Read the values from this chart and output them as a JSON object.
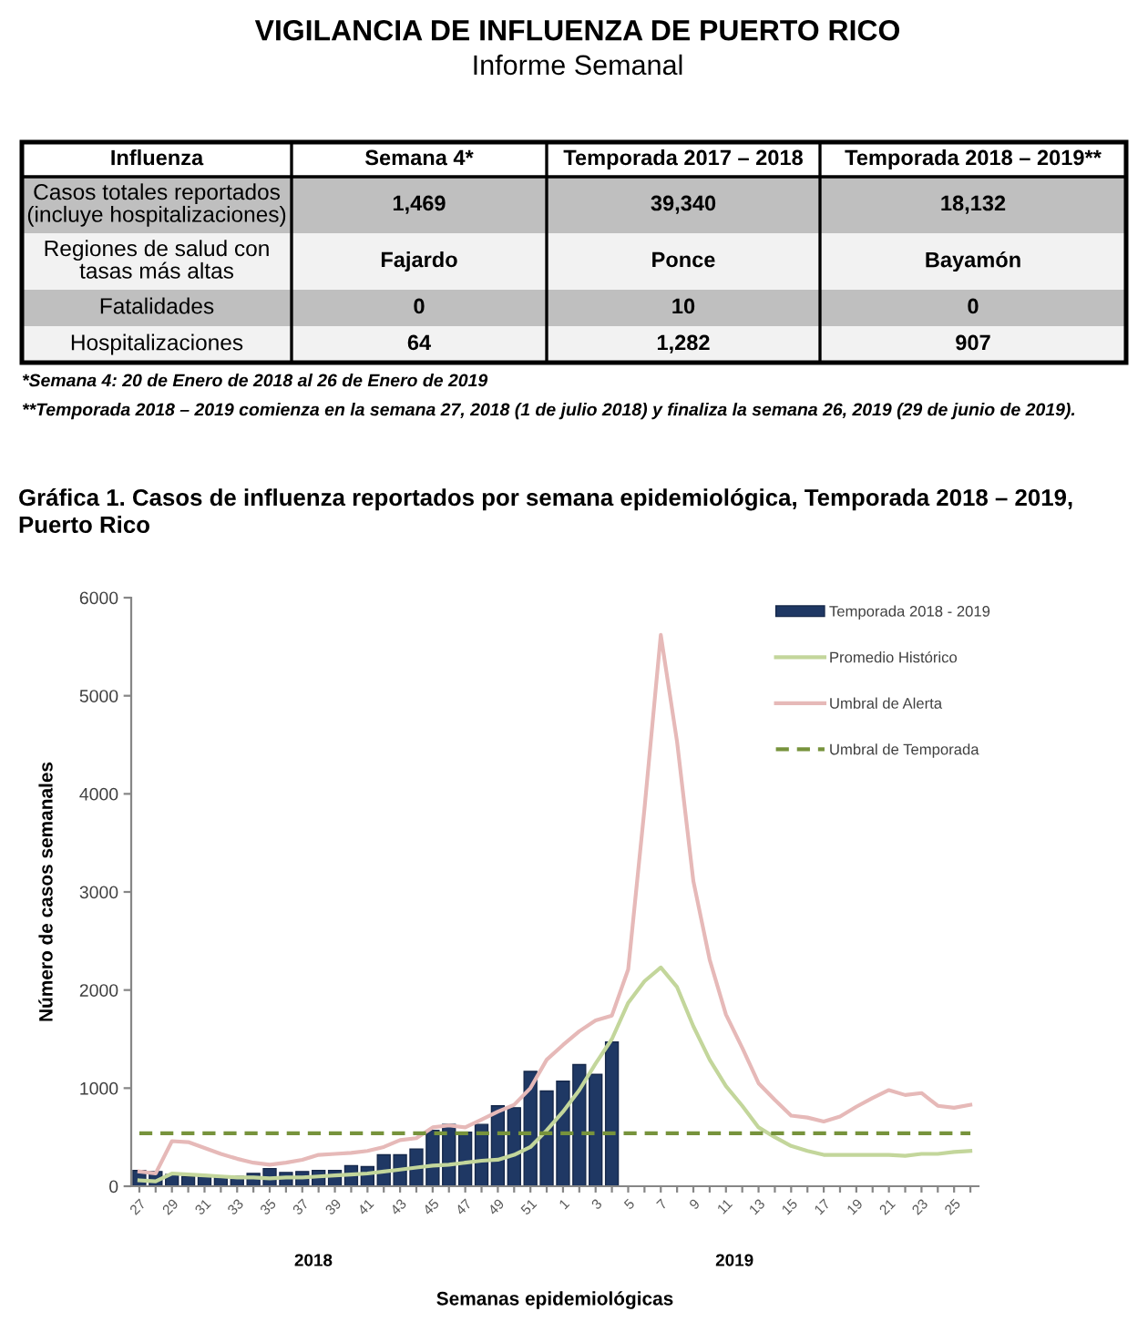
{
  "chart_data": [
    {
      "type": "other",
      "title": "VIGILANCIA DE INFLUENZA DE PUERTO RICO",
      "subtitle": "Informe Semanal",
      "categories": [
        "Influenza",
        "Semana 4*",
        "Temporada 2017 – 2018",
        "Temporada 2018 – 2019**"
      ],
      "y_categories": [
        "Casos totales reportados\n(incluye hospitalizaciones)",
        "Regiones de salud con\ntasas más altas",
        "Fatalidades",
        "Hospitalizaciones"
      ],
      "cell_labels": [
        [
          "1,469",
          "39,340",
          "18,132"
        ],
        [
          "Fajardo",
          "Ponce",
          "Bayamón"
        ],
        [
          "0",
          "10",
          "0"
        ],
        [
          "64",
          "1,282",
          "907"
        ]
      ],
      "annotations": [
        "*Semana 4: 20 de Enero de 2018 al 26 de Enero de 2019",
        "**Temporada 2018 – 2019 comienza en la semana 27, 2018 (1 de julio 2018) y finaliza la semana 26, 2019 (29 de junio de 2019)."
      ]
    },
    {
      "type": "bar",
      "title": "Gráfica 1. Casos de influenza reportados por semana epidemiológica, Temporada 2018 – 2019, Puerto Rico",
      "xlabel": "Semanas epidemiológicas",
      "ylabel": "Número de casos semanales",
      "categories": [
        "27",
        null,
        "29",
        null,
        "31",
        null,
        "33",
        null,
        "35",
        null,
        "37",
        null,
        "39",
        null,
        "41",
        null,
        "43",
        null,
        "45",
        null,
        "47",
        null,
        "49",
        null,
        "51",
        null,
        "1",
        null,
        "3",
        null,
        "5",
        null,
        "7",
        null,
        "9",
        null,
        "11",
        null,
        "13",
        null,
        "15",
        null,
        "17",
        null,
        "19",
        null,
        "21",
        null,
        "23",
        null,
        "25",
        null
      ],
      "series": [
        {
          "name": "Temporada 2018 - 2019",
          "type": "bar",
          "color": "#1f3864",
          "values": [
            160,
            150,
            120,
            100,
            100,
            90,
            100,
            130,
            180,
            140,
            150,
            160,
            160,
            210,
            200,
            320,
            320,
            380,
            570,
            630,
            550,
            630,
            820,
            800,
            1170,
            970,
            1070,
            1240,
            1140,
            1470,
            null,
            null,
            null,
            null,
            null,
            null,
            null,
            null,
            null,
            null,
            null,
            null,
            null,
            null,
            null,
            null,
            null,
            null,
            null,
            null,
            null,
            null
          ]
        },
        {
          "name": "Promedio Histórico",
          "type": "line",
          "color": "#c3d69b",
          "values": [
            60,
            50,
            130,
            120,
            110,
            100,
            90,
            90,
            80,
            90,
            90,
            100,
            110,
            120,
            130,
            150,
            170,
            190,
            210,
            220,
            240,
            260,
            270,
            320,
            400,
            570,
            760,
            980,
            1250,
            1500,
            1870,
            2090,
            2230,
            2030,
            1630,
            1290,
            1020,
            820,
            600,
            500,
            410,
            360,
            320,
            320,
            320,
            320,
            320,
            310,
            330,
            330,
            350,
            360
          ]
        },
        {
          "name": "Umbral de Alerta",
          "type": "line",
          "color": "#e6b9b8",
          "values": [
            150,
            130,
            460,
            450,
            390,
            330,
            280,
            240,
            220,
            240,
            270,
            320,
            330,
            340,
            360,
            400,
            470,
            490,
            600,
            620,
            600,
            680,
            760,
            830,
            1000,
            1290,
            1440,
            1580,
            1690,
            1740,
            2210,
            3850,
            5620,
            4530,
            3110,
            2310,
            1750,
            1410,
            1050,
            880,
            720,
            700,
            660,
            710,
            810,
            900,
            980,
            930,
            950,
            820,
            800,
            830
          ]
        },
        {
          "name": "Umbral de Temporada",
          "type": "line",
          "line_style": "dashed",
          "color": "#77933c",
          "values": [
            540,
            540,
            540,
            540,
            540,
            540,
            540,
            540,
            540,
            540,
            540,
            540,
            540,
            540,
            540,
            540,
            540,
            540,
            540,
            540,
            540,
            540,
            540,
            540,
            540,
            540,
            540,
            540,
            540,
            540,
            540,
            540,
            540,
            540,
            540,
            540,
            540,
            540,
            540,
            540,
            540,
            540,
            540,
            540,
            540,
            540,
            540,
            540,
            540,
            540,
            540,
            540
          ]
        }
      ],
      "ylim": [
        0,
        6000
      ],
      "yticks": [
        0,
        1000,
        2000,
        3000,
        4000,
        5000,
        6000
      ],
      "legend": "top right",
      "annotations": [
        "2018",
        "2019"
      ]
    }
  ]
}
